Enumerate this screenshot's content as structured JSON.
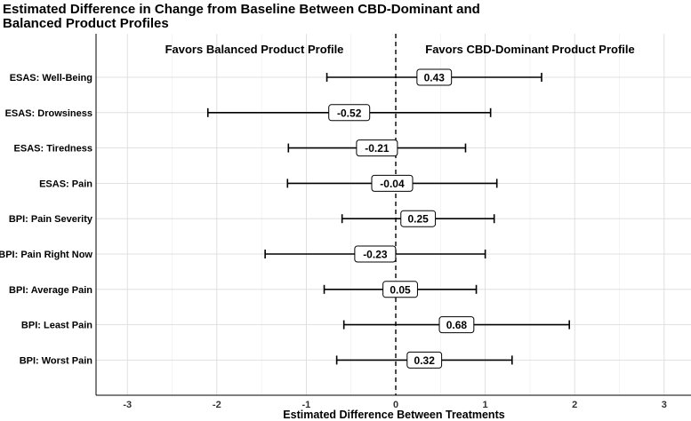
{
  "chart_data": {
    "type": "forest",
    "title_lines": [
      "Estimated Difference in Change from Baseline Between CBD-Dominant and",
      "Balanced Product Profiles"
    ],
    "xlabel": "Estimated Difference Between Treatments",
    "xlim": [
      -3.35,
      3.3
    ],
    "xticks": [
      -3,
      -2,
      -1,
      0,
      1,
      2,
      3
    ],
    "xtick_labels": [
      "-3",
      "-2",
      "-1",
      "0",
      "1",
      "2",
      "3"
    ],
    "reference_line": 0,
    "grid": true,
    "annotations": {
      "left": "Favors Balanced Product Profile",
      "right": "Favors CBD-Dominant Product Profile"
    },
    "rows": [
      {
        "label": "ESAS: Well-Being",
        "estimate": 0.43,
        "estimate_label": "0.43",
        "lower": -0.77,
        "upper": 1.63
      },
      {
        "label": "ESAS: Drowsiness",
        "estimate": -0.52,
        "estimate_label": "-0.52",
        "lower": -2.1,
        "upper": 1.06
      },
      {
        "label": "ESAS: Tiredness",
        "estimate": -0.21,
        "estimate_label": "-0.21",
        "lower": -1.2,
        "upper": 0.78
      },
      {
        "label": "ESAS: Pain",
        "estimate": -0.04,
        "estimate_label": "-0.04",
        "lower": -1.21,
        "upper": 1.13
      },
      {
        "label": "BPI: Pain Severity",
        "estimate": 0.25,
        "estimate_label": "0.25",
        "lower": -0.6,
        "upper": 1.1
      },
      {
        "label": "BPI: Pain Right Now",
        "estimate": -0.23,
        "estimate_label": "-0.23",
        "lower": -1.46,
        "upper": 1.0
      },
      {
        "label": "BPI: Average Pain",
        "estimate": 0.05,
        "estimate_label": "0.05",
        "lower": -0.8,
        "upper": 0.9
      },
      {
        "label": "BPI: Least Pain",
        "estimate": 0.68,
        "estimate_label": "0.68",
        "lower": -0.58,
        "upper": 1.94
      },
      {
        "label": "BPI: Worst Pain",
        "estimate": 0.32,
        "estimate_label": "0.32",
        "lower": -0.66,
        "upper": 1.3
      }
    ]
  }
}
